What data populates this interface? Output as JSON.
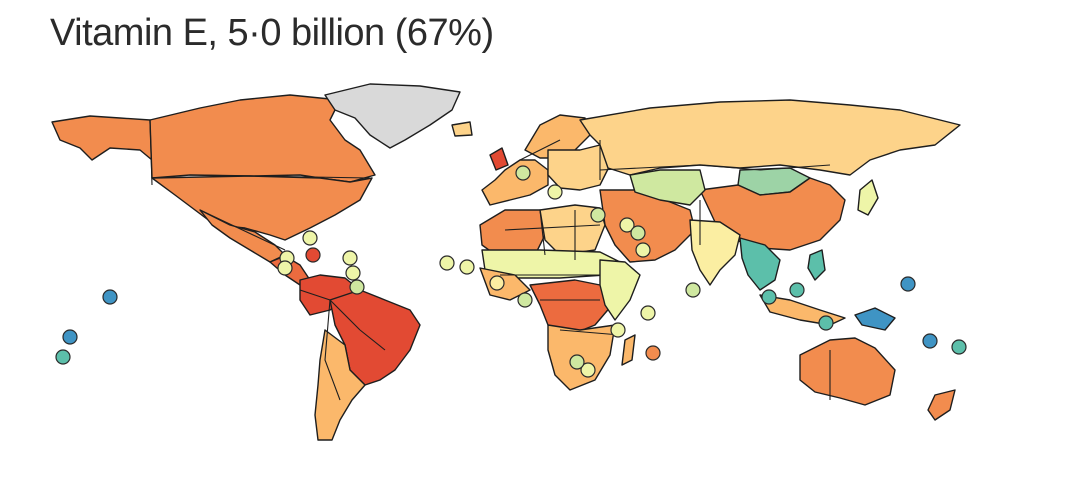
{
  "title": "Vitamin E, 5·0 billion (67%)",
  "colors": {
    "red": "#e24a33",
    "red_orange": "#ec6b3f",
    "orange": "#f28c4e",
    "light_orange": "#fbb86b",
    "pale_orange": "#fdd38a",
    "yellow": "#fbeea2",
    "pale_yellow": "#eef5a8",
    "light_green": "#cfe8a0",
    "green": "#9dd3a6",
    "teal": "#5cbfaa",
    "blue": "#3f94c4",
    "no_data": "#d9d9d9",
    "border": "#1e1e1e"
  },
  "regions": [
    {
      "name": "alaska",
      "color": "orange"
    },
    {
      "name": "canada",
      "color": "orange"
    },
    {
      "name": "greenland",
      "color": "no_data"
    },
    {
      "name": "usa",
      "color": "orange"
    },
    {
      "name": "mexico",
      "color": "orange"
    },
    {
      "name": "central-america",
      "color": "red_orange"
    },
    {
      "name": "south-america-north",
      "color": "red"
    },
    {
      "name": "brazil",
      "color": "red"
    },
    {
      "name": "southern-cone",
      "color": "light_orange"
    },
    {
      "name": "western-europe",
      "color": "light_orange"
    },
    {
      "name": "scandinavia",
      "color": "light_orange"
    },
    {
      "name": "eastern-europe",
      "color": "pale_orange"
    },
    {
      "name": "russia",
      "color": "pale_orange"
    },
    {
      "name": "mongolia",
      "color": "green"
    },
    {
      "name": "china",
      "color": "orange"
    },
    {
      "name": "middle-east",
      "color": "orange"
    },
    {
      "name": "central-asia",
      "color": "light_green"
    },
    {
      "name": "india",
      "color": "yellow"
    },
    {
      "name": "southeast-asia",
      "color": "teal"
    },
    {
      "name": "north-africa-west",
      "color": "orange"
    },
    {
      "name": "north-africa-east",
      "color": "pale_orange"
    },
    {
      "name": "sahel",
      "color": "pale_yellow"
    },
    {
      "name": "west-africa",
      "color": "light_orange"
    },
    {
      "name": "central-africa",
      "color": "red_orange"
    },
    {
      "name": "east-africa",
      "color": "pale_yellow"
    },
    {
      "name": "southern-africa",
      "color": "light_orange"
    },
    {
      "name": "madagascar",
      "color": "light_orange"
    },
    {
      "name": "indonesia",
      "color": "light_orange"
    },
    {
      "name": "papua",
      "color": "blue"
    },
    {
      "name": "australia",
      "color": "orange"
    },
    {
      "name": "new-zealand",
      "color": "orange"
    },
    {
      "name": "japan",
      "color": "pale_yellow"
    },
    {
      "name": "philippines",
      "color": "teal"
    },
    {
      "name": "uk",
      "color": "red"
    },
    {
      "name": "iceland",
      "color": "pale_orange"
    }
  ],
  "island_markers": [
    {
      "region": "hawaii",
      "color": "blue"
    },
    {
      "region": "pacific-sw-1",
      "color": "blue"
    },
    {
      "region": "pacific-sw-2",
      "color": "teal"
    },
    {
      "region": "caribbean-1",
      "color": "pale_yellow"
    },
    {
      "region": "caribbean-2",
      "color": "pale_yellow"
    },
    {
      "region": "caribbean-3",
      "color": "red"
    },
    {
      "region": "caribbean-4",
      "color": "pale_yellow"
    },
    {
      "region": "caribbean-5",
      "color": "pale_yellow"
    },
    {
      "region": "caribbean-6",
      "color": "pale_yellow"
    },
    {
      "region": "caribbean-7",
      "color": "light_green"
    },
    {
      "region": "cape-verde",
      "color": "pale_yellow"
    },
    {
      "region": "west-africa-coast",
      "color": "pale_yellow"
    },
    {
      "region": "gulf-of-guinea",
      "color": "light_green"
    },
    {
      "region": "mediterranean-1",
      "color": "light_green"
    },
    {
      "region": "mediterranean-2",
      "color": "pale_yellow"
    },
    {
      "region": "levant-1",
      "color": "light_green"
    },
    {
      "region": "levant-2",
      "color": "pale_yellow"
    },
    {
      "region": "gulf-1",
      "color": "pale_yellow"
    },
    {
      "region": "gulf-2",
      "color": "light_green"
    },
    {
      "region": "comoros",
      "color": "pale_yellow"
    },
    {
      "region": "seychelles",
      "color": "pale_yellow"
    },
    {
      "region": "maldives",
      "color": "light_green"
    },
    {
      "region": "mauritius",
      "color": "orange"
    },
    {
      "region": "reunion",
      "color": "pale_yellow"
    },
    {
      "region": "brunei",
      "color": "teal"
    },
    {
      "region": "timor",
      "color": "teal"
    },
    {
      "region": "singapore",
      "color": "teal"
    },
    {
      "region": "micronesia",
      "color": "blue"
    },
    {
      "region": "solomon",
      "color": "blue"
    },
    {
      "region": "vanuatu",
      "color": "teal"
    },
    {
      "region": "caribbean-8",
      "color": "yellow"
    },
    {
      "region": "east-africa-coast",
      "color": "light_green"
    }
  ]
}
